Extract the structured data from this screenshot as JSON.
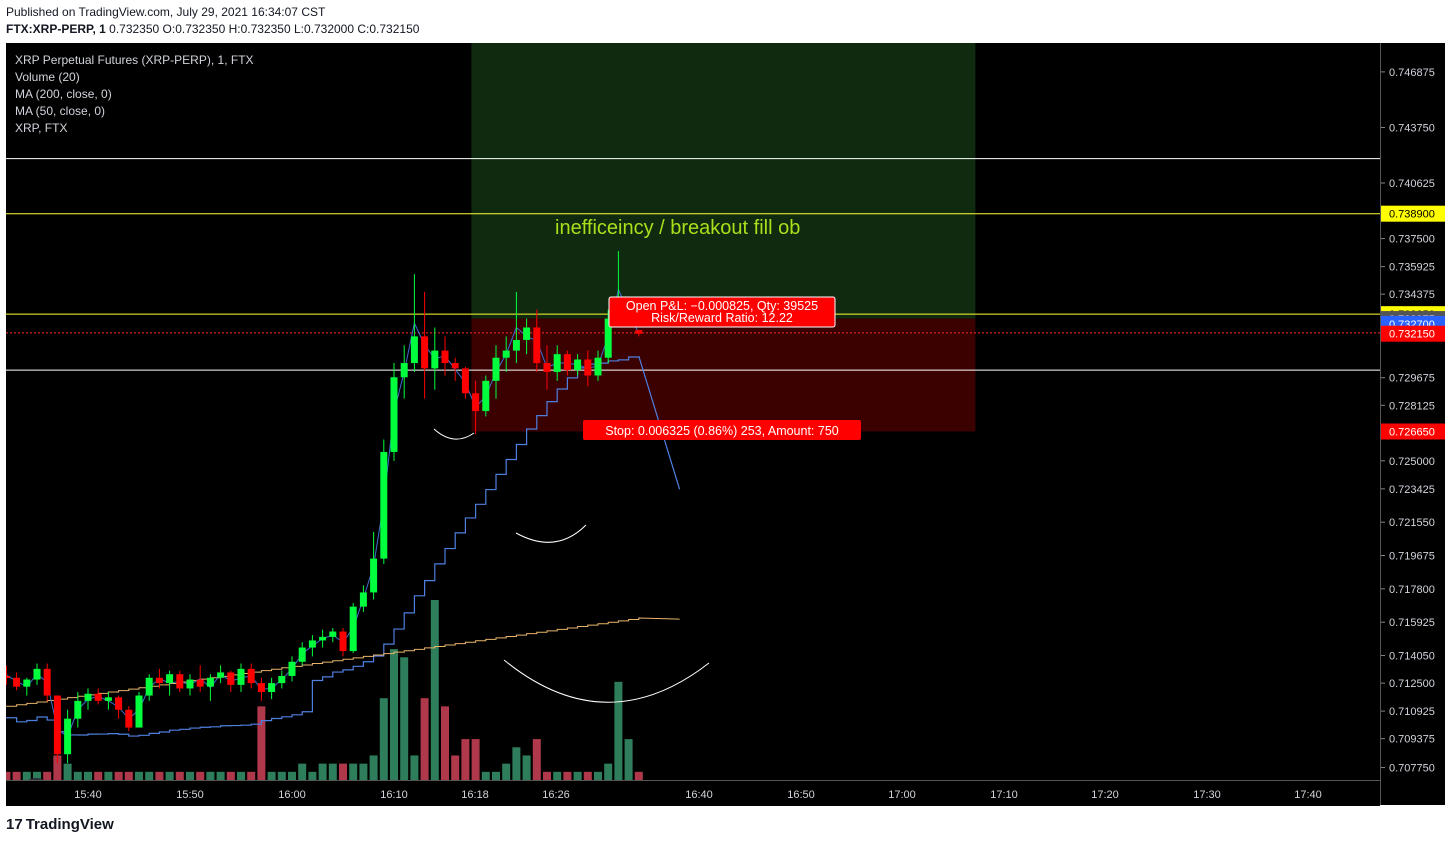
{
  "header": {
    "published": "Published on TradingView.com, July 29, 2021 16:34:07 CST",
    "symbol_line": "FTX:XRP-PERP, 1",
    "ohlc": " 0.732350 O:0.732350 H:0.732350 L:0.732000 C:0.732150"
  },
  "legend": {
    "title": "XRP Perpetual Futures (XRP-PERP), 1, FTX",
    "volume": "Volume (20)",
    "ma200": "MA (200, close, 0)",
    "ma50": "MA (50, close, 0)",
    "compare": "XRP, FTX"
  },
  "annotation": "inefficeincy / breakout fill ob",
  "position_label": {
    "line1": "Open P&L: −0.000825, Qty: 39525",
    "line2": "Risk/Reward Ratio: 12.22"
  },
  "stop_label": "Stop: 0.006325 (0.86%) 253, Amount: 750",
  "branding": "TradingView",
  "colors": {
    "up": "#00ff3c",
    "down": "#ff0000",
    "vol_up": "#2e7d5b",
    "vol_down": "#b0384b",
    "ma50": "#4f7fe0",
    "ma200": "#e9b56b",
    "target_zone": "#0f2a0f",
    "stop_zone": "#3b0000",
    "yellow_line": "#ffff33",
    "white_line": "#ffffff"
  },
  "chart_data": {
    "type": "candlestick",
    "y_ticks": [
      "0.746875",
      "0.743750",
      "0.740625",
      "0.737500",
      "0.735925",
      "0.734375",
      "0.729675",
      "0.728125",
      "0.725000",
      "0.723425",
      "0.721550",
      "0.719675",
      "0.717800",
      "0.715925",
      "0.714050",
      "0.712500",
      "0.710925",
      "0.709375",
      "0.707750"
    ],
    "price_tags": [
      {
        "value": "0.738900",
        "style": "yellow"
      },
      {
        "value": "0.733250",
        "style": "yellow"
      },
      {
        "value": "0.732975",
        "style": "gray"
      },
      {
        "value": "0.732700",
        "style": "blue"
      },
      {
        "value": "0.732150",
        "style": "red"
      },
      {
        "value": "0.726650",
        "style": "red"
      }
    ],
    "x_ticks": [
      "15:40",
      "15:50",
      "16:00",
      "16:10",
      "16:18",
      "16:26",
      "16:40",
      "16:50",
      "17:00",
      "17:10",
      "17:20",
      "17:30",
      "17:40"
    ],
    "ylim": [
      0.7066,
      0.7485
    ],
    "horizontal_lines": [
      {
        "price": 0.742,
        "color": "white"
      },
      {
        "price": 0.7389,
        "color": "yellow"
      },
      {
        "price": 0.73325,
        "color": "yellow"
      },
      {
        "price": 0.7301,
        "color": "white"
      },
      {
        "price": 0.7322,
        "color": "red-dotted"
      }
    ],
    "position": {
      "target": 0.7485,
      "entry": 0.733,
      "stop": 0.72665,
      "start": "16:17",
      "end": "17:07"
    },
    "candles": [
      [
        "15:32",
        0.7129,
        0.7135,
        0.7124,
        0.7128
      ],
      [
        "15:33",
        0.7128,
        0.7131,
        0.7121,
        0.7123
      ],
      [
        "15:34",
        0.7123,
        0.7128,
        0.7118,
        0.7127
      ],
      [
        "15:35",
        0.7127,
        0.7136,
        0.7124,
        0.7133
      ],
      [
        "15:36",
        0.7133,
        0.7136,
        0.7115,
        0.7118
      ],
      [
        "15:37",
        0.7118,
        0.7118,
        0.708,
        0.7085
      ],
      [
        "15:38",
        0.7085,
        0.711,
        0.708,
        0.7105
      ],
      [
        "15:39",
        0.7105,
        0.712,
        0.71,
        0.7115
      ],
      [
        "15:40",
        0.7115,
        0.7122,
        0.711,
        0.7119
      ],
      [
        "15:41",
        0.7119,
        0.7122,
        0.7113,
        0.7115
      ],
      [
        "15:42",
        0.7115,
        0.712,
        0.711,
        0.7117
      ],
      [
        "15:43",
        0.7117,
        0.7118,
        0.7105,
        0.711
      ],
      [
        "15:44",
        0.711,
        0.7112,
        0.7098,
        0.71
      ],
      [
        "15:45",
        0.71,
        0.712,
        0.71,
        0.7118
      ],
      [
        "15:46",
        0.7118,
        0.713,
        0.7115,
        0.7128
      ],
      [
        "15:47",
        0.7128,
        0.7133,
        0.7122,
        0.7125
      ],
      [
        "15:48",
        0.7125,
        0.7132,
        0.7118,
        0.713
      ],
      [
        "15:49",
        0.713,
        0.7132,
        0.712,
        0.7122
      ],
      [
        "15:50",
        0.7122,
        0.713,
        0.7118,
        0.7127
      ],
      [
        "15:51",
        0.7127,
        0.7135,
        0.712,
        0.7123
      ],
      [
        "15:52",
        0.7123,
        0.713,
        0.7115,
        0.7128
      ],
      [
        "15:53",
        0.7128,
        0.7135,
        0.7125,
        0.7131
      ],
      [
        "15:54",
        0.7131,
        0.7132,
        0.712,
        0.7124
      ],
      [
        "15:55",
        0.7124,
        0.7136,
        0.712,
        0.7133
      ],
      [
        "15:56",
        0.7133,
        0.7136,
        0.7122,
        0.7125
      ],
      [
        "15:57",
        0.7125,
        0.7128,
        0.7115,
        0.712
      ],
      [
        "15:58",
        0.712,
        0.7128,
        0.7116,
        0.7125
      ],
      [
        "15:59",
        0.7125,
        0.7132,
        0.7122,
        0.7129
      ],
      [
        "16:00",
        0.7129,
        0.714,
        0.7126,
        0.7137
      ],
      [
        "16:01",
        0.7137,
        0.7148,
        0.7135,
        0.7145
      ],
      [
        "16:02",
        0.7145,
        0.7152,
        0.714,
        0.7149
      ],
      [
        "16:03",
        0.7149,
        0.7155,
        0.7145,
        0.7151
      ],
      [
        "16:04",
        0.7151,
        0.7156,
        0.7148,
        0.7154
      ],
      [
        "16:05",
        0.7154,
        0.7156,
        0.714,
        0.7143
      ],
      [
        "16:06",
        0.7143,
        0.717,
        0.7142,
        0.7168
      ],
      [
        "16:07",
        0.7168,
        0.718,
        0.7165,
        0.7176
      ],
      [
        "16:08",
        0.7176,
        0.721,
        0.7172,
        0.7195
      ],
      [
        "16:09",
        0.7195,
        0.7262,
        0.7192,
        0.7255
      ],
      [
        "16:10",
        0.7255,
        0.7305,
        0.725,
        0.7297
      ],
      [
        "16:11",
        0.7297,
        0.7315,
        0.7285,
        0.7305
      ],
      [
        "16:12",
        0.7305,
        0.7355,
        0.73,
        0.732
      ],
      [
        "16:13",
        0.732,
        0.7345,
        0.7285,
        0.7302
      ],
      [
        "16:14",
        0.7302,
        0.7325,
        0.729,
        0.7312
      ],
      [
        "16:15",
        0.7312,
        0.732,
        0.7298,
        0.7305
      ],
      [
        "16:16",
        0.7305,
        0.7308,
        0.7295,
        0.7302
      ],
      [
        "16:17",
        0.7302,
        0.7303,
        0.7285,
        0.7288
      ],
      [
        "16:18",
        0.7288,
        0.7295,
        0.7265,
        0.7278
      ],
      [
        "16:19",
        0.7278,
        0.7298,
        0.7275,
        0.7295
      ],
      [
        "16:20",
        0.7295,
        0.7315,
        0.7285,
        0.7308
      ],
      [
        "16:21",
        0.7308,
        0.732,
        0.73,
        0.7312
      ],
      [
        "16:22",
        0.7312,
        0.7345,
        0.7305,
        0.7318
      ],
      [
        "16:23",
        0.7318,
        0.733,
        0.731,
        0.7325
      ],
      [
        "16:24",
        0.7325,
        0.7335,
        0.73,
        0.7305
      ],
      [
        "16:25",
        0.7305,
        0.7315,
        0.729,
        0.73
      ],
      [
        "16:26",
        0.73,
        0.7315,
        0.7295,
        0.731
      ],
      [
        "16:27",
        0.731,
        0.7312,
        0.7298,
        0.7301
      ],
      [
        "16:28",
        0.7301,
        0.731,
        0.7298,
        0.7307
      ],
      [
        "16:29",
        0.7307,
        0.7312,
        0.7292,
        0.7298
      ],
      [
        "16:30",
        0.7298,
        0.7312,
        0.7295,
        0.7308
      ],
      [
        "16:31",
        0.7308,
        0.7335,
        0.7305,
        0.733
      ],
      [
        "16:32",
        0.733,
        0.7368,
        0.7325,
        0.7332
      ],
      [
        "16:33",
        0.7332,
        0.7338,
        0.7328,
        0.7334
      ],
      [
        "16:34",
        0.73235,
        0.73235,
        0.732,
        0.73215
      ]
    ],
    "volume": [
      [
        "15:32",
        1
      ],
      [
        "15:33",
        1
      ],
      [
        "15:34",
        1
      ],
      [
        "15:35",
        1
      ],
      [
        "15:36",
        1
      ],
      [
        "15:37",
        3
      ],
      [
        "15:38",
        2
      ],
      [
        "15:39",
        1
      ],
      [
        "15:40",
        1
      ],
      [
        "15:41",
        1
      ],
      [
        "15:42",
        1
      ],
      [
        "15:43",
        1
      ],
      [
        "15:44",
        1
      ],
      [
        "15:45",
        1
      ],
      [
        "15:46",
        1
      ],
      [
        "15:47",
        1
      ],
      [
        "15:48",
        1
      ],
      [
        "15:49",
        1
      ],
      [
        "15:50",
        1
      ],
      [
        "15:51",
        1
      ],
      [
        "15:52",
        1
      ],
      [
        "15:53",
        1
      ],
      [
        "15:54",
        1
      ],
      [
        "15:55",
        1
      ],
      [
        "15:56",
        1
      ],
      [
        "15:57",
        9
      ],
      [
        "15:58",
        1
      ],
      [
        "15:59",
        1
      ],
      [
        "16:00",
        1
      ],
      [
        "16:01",
        2
      ],
      [
        "16:02",
        1
      ],
      [
        "16:03",
        2
      ],
      [
        "16:04",
        2
      ],
      [
        "16:05",
        2
      ],
      [
        "16:06",
        2
      ],
      [
        "16:07",
        2
      ],
      [
        "16:08",
        3
      ],
      [
        "16:09",
        10
      ],
      [
        "16:10",
        16
      ],
      [
        "16:11",
        15
      ],
      [
        "16:12",
        3
      ],
      [
        "16:13",
        10
      ],
      [
        "16:14",
        22
      ],
      [
        "16:15",
        9
      ],
      [
        "16:16",
        3
      ],
      [
        "16:17",
        5
      ],
      [
        "16:18",
        5
      ],
      [
        "16:19",
        1
      ],
      [
        "16:20",
        1
      ],
      [
        "16:21",
        2
      ],
      [
        "16:22",
        4
      ],
      [
        "16:23",
        3
      ],
      [
        "16:24",
        5
      ],
      [
        "16:25",
        1
      ],
      [
        "16:26",
        1
      ],
      [
        "16:27",
        1
      ],
      [
        "16:28",
        1
      ],
      [
        "16:29",
        1
      ],
      [
        "16:30",
        1
      ],
      [
        "16:31",
        2
      ],
      [
        "16:32",
        12
      ],
      [
        "16:33",
        5
      ],
      [
        "16:34",
        1
      ]
    ]
  }
}
